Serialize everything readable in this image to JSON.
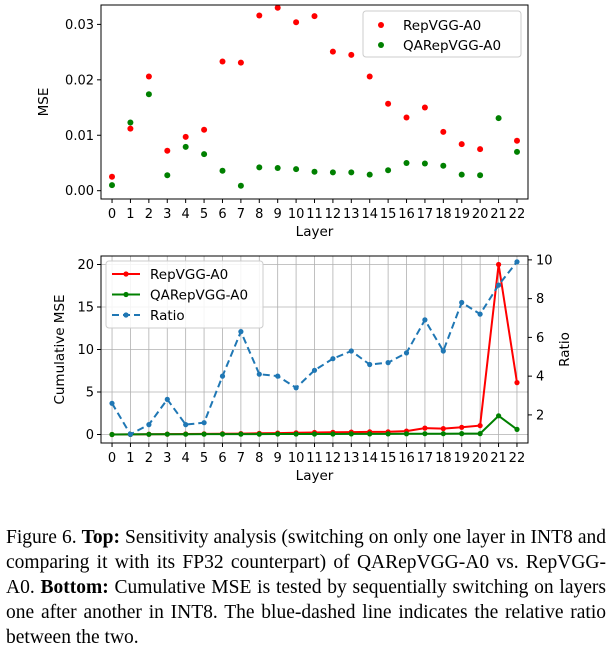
{
  "chart_data": [
    {
      "type": "scatter",
      "xlabel": "Layer",
      "ylabel": "MSE",
      "x": [
        0,
        1,
        2,
        3,
        4,
        5,
        6,
        7,
        8,
        9,
        10,
        11,
        12,
        13,
        14,
        15,
        16,
        17,
        18,
        19,
        20,
        21,
        22
      ],
      "x_ticklabels": [
        "0",
        "1",
        "2",
        "3",
        "4",
        "5",
        "6",
        "7",
        "8",
        "9",
        "10",
        "11",
        "12",
        "13",
        "14",
        "15",
        "16",
        "17",
        "18",
        "19",
        "20",
        "21",
        "22"
      ],
      "y_ticks": [
        0.0,
        0.01,
        0.02,
        0.03
      ],
      "y_ticklabels": [
        "0.00",
        "0.01",
        "0.02",
        "0.03"
      ],
      "ylim": [
        -0.0015,
        0.0335
      ],
      "xlim": [
        -0.6,
        22.6
      ],
      "grid": false,
      "legend_position": "top-right",
      "series": [
        {
          "name": "RepVGG-A0",
          "color": "#ff0000",
          "values": [
            0.0025,
            0.0112,
            0.0206,
            0.0072,
            0.0097,
            0.011,
            0.0233,
            0.0231,
            0.0316,
            0.033,
            0.0304,
            0.0315,
            0.0251,
            0.0245,
            0.0206,
            0.0157,
            0.0132,
            0.015,
            0.0106,
            0.0084,
            0.0075,
            null,
            0.009
          ]
        },
        {
          "name": "QARepVGG-A0",
          "color": "#008000",
          "values": [
            0.001,
            0.0123,
            0.0174,
            0.0028,
            0.0079,
            0.0066,
            0.0036,
            0.0009,
            0.0042,
            0.0041,
            0.0039,
            0.0034,
            0.0033,
            0.0033,
            0.0029,
            0.0037,
            0.005,
            0.0049,
            0.0045,
            0.0029,
            0.0028,
            0.0131,
            0.007
          ]
        }
      ]
    },
    {
      "type": "line",
      "xlabel": "Layer",
      "ylabel": "Cumulative MSE",
      "y2label": "Ratio",
      "x": [
        0,
        1,
        2,
        3,
        4,
        5,
        6,
        7,
        8,
        9,
        10,
        11,
        12,
        13,
        14,
        15,
        16,
        17,
        18,
        19,
        20,
        21,
        22
      ],
      "x_ticklabels": [
        "0",
        "1",
        "2",
        "3",
        "4",
        "5",
        "6",
        "7",
        "8",
        "9",
        "10",
        "11",
        "12",
        "13",
        "14",
        "15",
        "16",
        "17",
        "18",
        "19",
        "20",
        "21",
        "22"
      ],
      "y_ticks": [
        0,
        5,
        10,
        15,
        20
      ],
      "y_ticklabels": [
        "0",
        "5",
        "10",
        "15",
        "20"
      ],
      "y2_ticks": [
        2,
        4,
        6,
        8,
        10
      ],
      "y2_ticklabels": [
        "2",
        "4",
        "6",
        "8",
        "10"
      ],
      "ylim": [
        -1,
        21
      ],
      "y2lim": [
        0.55,
        10.2
      ],
      "xlim": [
        -0.6,
        22.6
      ],
      "grid": true,
      "legend_position": "top-left",
      "series": [
        {
          "name": "RepVGG-A0",
          "axis": "left",
          "color": "#ff0000",
          "style": "solid",
          "values": [
            0.0,
            0.01,
            0.04,
            0.05,
            0.06,
            0.07,
            0.09,
            0.11,
            0.14,
            0.17,
            0.2,
            0.23,
            0.26,
            0.28,
            0.3,
            0.32,
            0.4,
            0.75,
            0.7,
            0.85,
            1.05,
            20.0,
            6.1
          ]
        },
        {
          "name": "QARepVGG-A0",
          "axis": "left",
          "color": "#008000",
          "style": "solid",
          "values": [
            0.0,
            0.01,
            0.02,
            0.03,
            0.04,
            0.05,
            0.05,
            0.05,
            0.05,
            0.06,
            0.06,
            0.06,
            0.06,
            0.07,
            0.07,
            0.07,
            0.08,
            0.09,
            0.09,
            0.1,
            0.11,
            2.2,
            0.6
          ]
        },
        {
          "name": "Ratio",
          "axis": "right",
          "color": "#1f77b4",
          "style": "dashed",
          "marker": "circle",
          "values": [
            2.6,
            1.0,
            1.5,
            2.8,
            1.5,
            1.6,
            4.0,
            6.3,
            4.1,
            4.0,
            3.4,
            4.3,
            4.9,
            5.3,
            4.6,
            4.7,
            5.2,
            6.9,
            5.3,
            7.8,
            7.2,
            8.7,
            9.9
          ]
        }
      ]
    }
  ],
  "caption": {
    "prefix": "Figure 6. ",
    "top_label": "Top:",
    "top_text": " Sensitivity analysis (switching on only one layer in INT8 and comparing it with its FP32 counterpart) of QARepVGG-A0 vs.  RepVGG-A0. ",
    "bottom_label": "Bottom:",
    "bottom_text": " Cumulative MSE is tested by sequentially switching on layers one after another in INT8.  The blue-dashed line indicates the relative ratio between the two."
  }
}
